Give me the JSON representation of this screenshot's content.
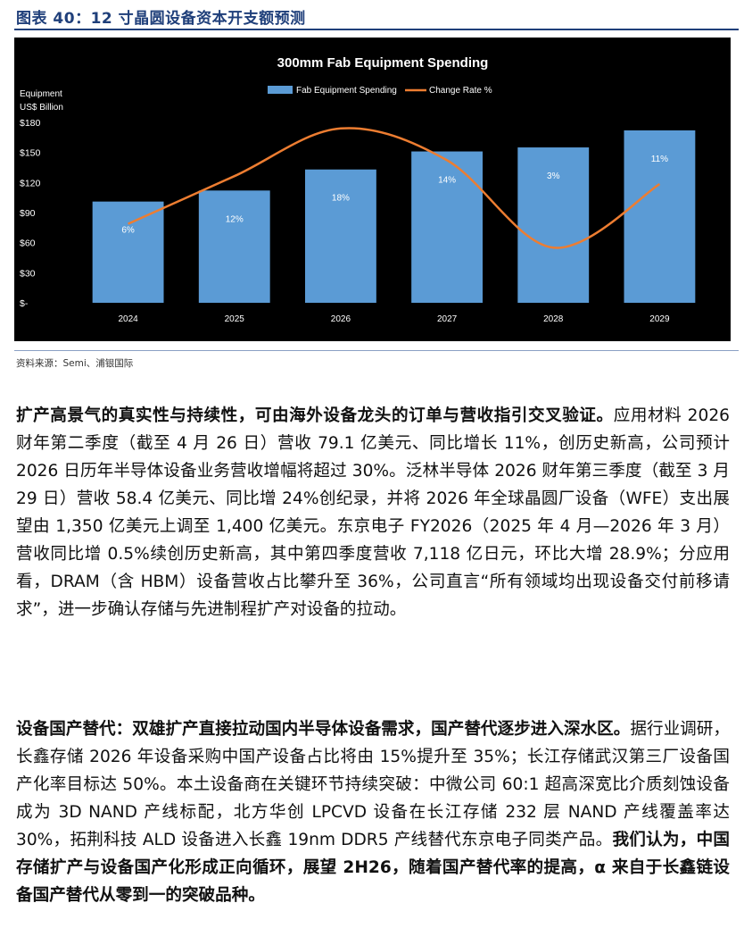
{
  "figure": {
    "title": "图表 40：12 寸晶圆设备资本开支额预测",
    "source": "资料来源：Semi、浦银国际"
  },
  "chart_data": {
    "type": "bar",
    "title": "300mm Fab Equipment Spending",
    "ylabel_line1": "Equipment",
    "ylabel_line2": "US$ Billion",
    "categories": [
      "2024",
      "2025",
      "2026",
      "2027",
      "2028",
      "2029"
    ],
    "series": [
      {
        "name": "Fab Equipment Spending",
        "values": [
          101,
          112,
          133,
          151,
          155,
          172
        ],
        "color": "#5b9bd5"
      },
      {
        "name": "Change Rate %",
        "values": [
          6,
          12,
          18,
          14,
          3,
          11
        ],
        "color": "#ed7d31"
      }
    ],
    "bar_labels": [
      "6%",
      "12%",
      "18%",
      "14%",
      "3%",
      "11%"
    ],
    "ylim": [
      0,
      180
    ],
    "yticks": [
      0,
      30,
      60,
      90,
      120,
      150,
      180
    ],
    "ytick_labels": [
      "$-",
      "$30",
      "$60",
      "$90",
      "$120",
      "$150",
      "$180"
    ],
    "legend_position": "top-center",
    "background": "#000000",
    "grid": false
  },
  "paragraphs": {
    "p1_bold": "扩产高景气的真实性与持续性，可由海外设备龙头的订单与营收指引交叉验证。",
    "p1_text": "应用材料 2026 财年第二季度（截至 4 月 26 日）营收 79.1 亿美元、同比增长 11%，创历史新高，公司预计 2026 日历年半导体设备业务营收增幅将超过 30%。泛林半导体 2026 财年第三季度（截至 3 月 29 日）营收 58.4 亿美元、同比增 24%创纪录，并将 2026 年全球晶圆厂设备（WFE）支出展望由 1,350 亿美元上调至 1,400 亿美元。东京电子 FY2026（2025 年 4 月—2026 年 3 月）营收同比增 0.5%续创历史新高，其中第四季度营收 7,118 亿日元，环比大增 28.9%；分应用看，DRAM（含 HBM）设备营收占比攀升至 36%，公司直言“所有领域均出现设备交付前移请求”，进一步确认存储与先进制程扩产对设备的拉动。",
    "p2_bold": "设备国产替代：双雄扩产直接拉动国内半导体设备需求，国产替代逐步进入深水区。",
    "p2_text": "据行业调研，长鑫存储 2026 年设备采购中国产设备占比将由 15%提升至 35%；长江存储武汉第三厂设备国产化率目标达 50%。本土设备商在关键环节持续突破：中微公司 60:1 超高深宽比介质刻蚀设备成为 3D NAND 产线标配，北方华创 LPCVD 设备在长江存储 232 层 NAND 产线覆盖率达 30%，拓荆科技 ALD 设备进入长鑫 19nm DDR5 产线替代东京电子同类产品。",
    "p2_bold_end": "我们认为，中国存储扩产与设备国产化形成正向循环，展望 2H26，随着国产替代率的提高，α 来自于长鑫链设备国产替代从零到一的突破品种。"
  }
}
